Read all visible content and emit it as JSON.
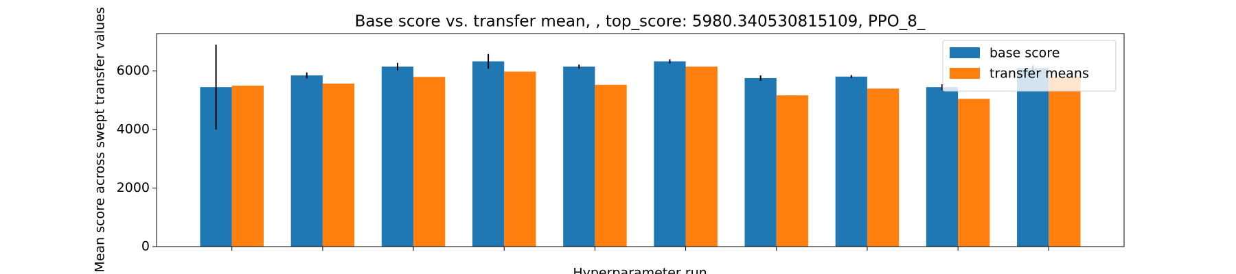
{
  "chart_data": {
    "type": "bar",
    "title": "Base score vs. transfer mean, , top_score: 5980.340530815109, PPO_8_",
    "x_label": "Hyperparameter run",
    "y_label": "Mean score across swept transfer values",
    "categories": [
      null,
      null,
      null,
      null,
      null,
      null,
      null,
      null,
      null,
      null
    ],
    "series": [
      {
        "name": "base score",
        "color": "#1f77b4",
        "values": [
          5450,
          5850,
          6150,
          6330,
          6150,
          6330,
          5760,
          5810,
          5450,
          6100
        ],
        "errors": [
          1450,
          100,
          130,
          250,
          70,
          70,
          90,
          50,
          100,
          100
        ]
      },
      {
        "name": "transfer means",
        "color": "#ff7f0e",
        "values": [
          5500,
          5570,
          5800,
          5980,
          5530,
          6150,
          5170,
          5400,
          5050,
          5800
        ]
      }
    ],
    "ylim": [
      0,
      7280
    ],
    "yticks": [
      0,
      2000,
      4000,
      6000
    ],
    "legend": "upper right"
  }
}
